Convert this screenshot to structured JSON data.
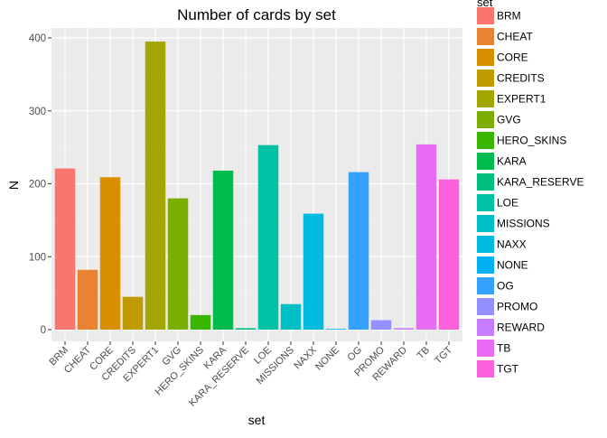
{
  "chart_data": {
    "type": "bar",
    "title": "Number of cards by set",
    "xlabel": "set",
    "ylabel": "N",
    "legend_title": "set",
    "legend_position": "right",
    "ylim": [
      0,
      420
    ],
    "yticks": [
      0,
      100,
      200,
      300,
      400
    ],
    "grid": true,
    "categories": [
      "BRM",
      "CHEAT",
      "CORE",
      "CREDITS",
      "EXPERT1",
      "GVG",
      "HERO_SKINS",
      "KARA",
      "KARA_RESERVE",
      "LOE",
      "MISSIONS",
      "NAXX",
      "NONE",
      "OG",
      "PROMO",
      "REWARD",
      "TB",
      "TGT"
    ],
    "values": [
      221,
      82,
      209,
      45,
      395,
      180,
      20,
      218,
      2,
      253,
      35,
      159,
      1,
      216,
      13,
      2,
      254,
      206
    ],
    "colors": [
      "#F8766D",
      "#EA8331",
      "#D89000",
      "#C09B00",
      "#A3A500",
      "#7CAE00",
      "#39B600",
      "#00BB4E",
      "#00BF7D",
      "#00C1A3",
      "#00BFC4",
      "#00BAE0",
      "#00B0F6",
      "#35A2FF",
      "#9590FF",
      "#C77CFF",
      "#E76BF3",
      "#FA62DB",
      "#FF62BC",
      "#FF6C91"
    ]
  }
}
